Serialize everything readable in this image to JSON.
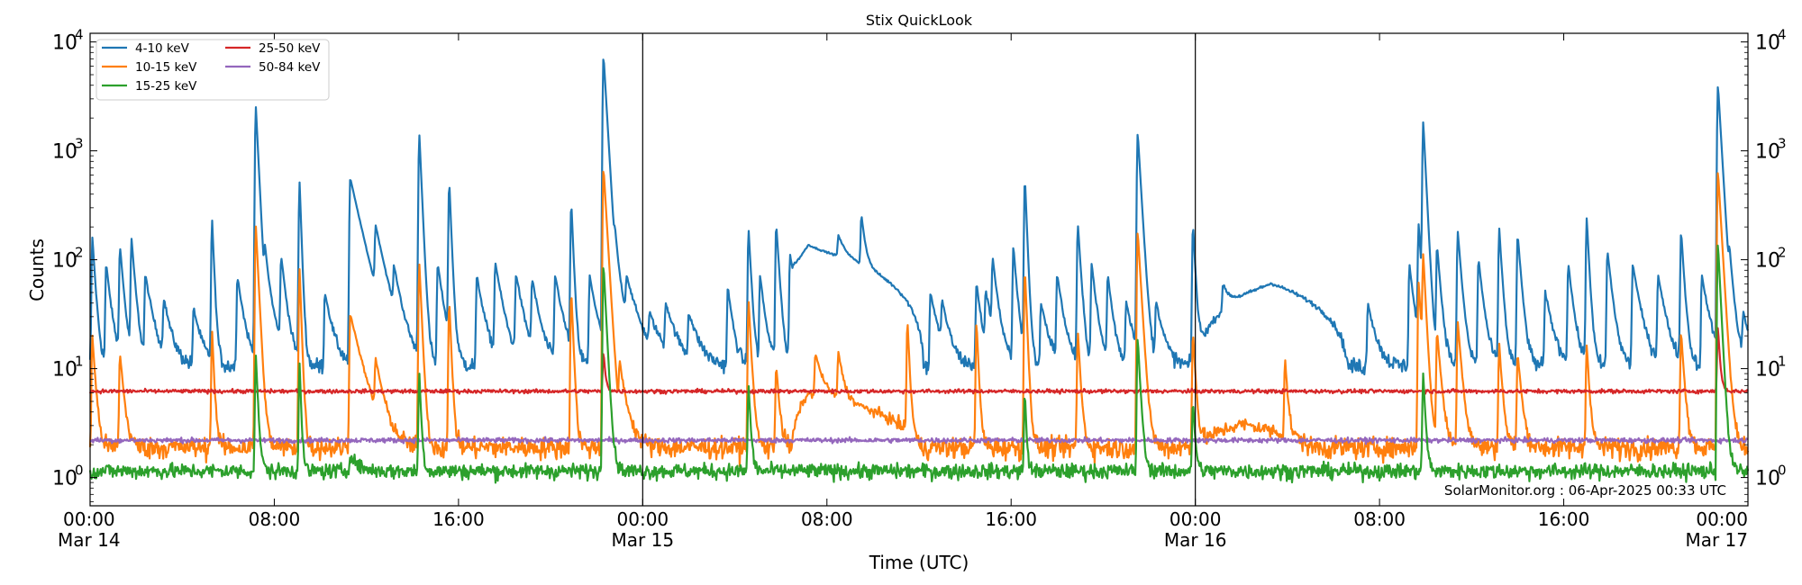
{
  "chart_data": {
    "type": "line",
    "title": "Stix QuickLook",
    "xlabel": "Time (UTC)",
    "ylabel": "Counts",
    "yscale": "log",
    "ylim": [
      0.55,
      12000
    ],
    "xlim_hours": [
      0,
      72
    ],
    "grid": false,
    "legend_position": "top-left",
    "day_dividers_hours": [
      24,
      48
    ],
    "x_ticks": [
      {
        "hour": 0,
        "label": "00:00",
        "sublabel": "Mar 14"
      },
      {
        "hour": 8,
        "label": "08:00",
        "sublabel": ""
      },
      {
        "hour": 16,
        "label": "16:00",
        "sublabel": ""
      },
      {
        "hour": 24,
        "label": "00:00",
        "sublabel": "Mar 15"
      },
      {
        "hour": 32,
        "label": "08:00",
        "sublabel": ""
      },
      {
        "hour": 40,
        "label": "16:00",
        "sublabel": ""
      },
      {
        "hour": 48,
        "label": "00:00",
        "sublabel": "Mar 16"
      },
      {
        "hour": 56,
        "label": "08:00",
        "sublabel": ""
      },
      {
        "hour": 64,
        "label": "16:00",
        "sublabel": ""
      },
      {
        "hour": 72,
        "label": "00:00",
        "sublabel": "Mar 17"
      }
    ],
    "y_ticks": [
      {
        "value": 1,
        "base": "10",
        "exp": "0"
      },
      {
        "value": 10,
        "base": "10",
        "exp": "1"
      },
      {
        "value": 100,
        "base": "10",
        "exp": "2"
      },
      {
        "value": 1000,
        "base": "10",
        "exp": "3"
      },
      {
        "value": 10000,
        "base": "10",
        "exp": "4"
      }
    ],
    "annotation": "SolarMonitor.org : 06-Apr-2025 00:33 UTC",
    "series": [
      {
        "name": "4-10 keV",
        "color": "#1f77b4",
        "baseline": 10.5,
        "noise": 0.18,
        "events": [
          {
            "type": "peak",
            "t": 0.1,
            "amp": 150,
            "w": 0.12
          },
          {
            "type": "peak",
            "t": 0.7,
            "amp": 80,
            "w": 0.2
          },
          {
            "type": "peak",
            "t": 1.3,
            "amp": 120,
            "w": 0.15
          },
          {
            "type": "peak",
            "t": 1.8,
            "amp": 140,
            "w": 0.15
          },
          {
            "type": "peak",
            "t": 2.4,
            "amp": 60,
            "w": 0.3
          },
          {
            "type": "peak",
            "t": 3.2,
            "amp": 30,
            "w": 0.3
          },
          {
            "type": "peak",
            "t": 4.5,
            "amp": 25,
            "w": 0.3
          },
          {
            "type": "peak",
            "t": 5.3,
            "amp": 220,
            "w": 0.08
          },
          {
            "type": "peak",
            "t": 6.4,
            "amp": 60,
            "w": 0.25
          },
          {
            "type": "peak",
            "t": 7.2,
            "amp": 2500,
            "w": 0.1
          },
          {
            "type": "peak",
            "t": 7.6,
            "amp": 80,
            "w": 0.3
          },
          {
            "type": "peak",
            "t": 8.3,
            "amp": 90,
            "w": 0.2
          },
          {
            "type": "peak",
            "t": 9.1,
            "amp": 500,
            "w": 0.07
          },
          {
            "type": "peak",
            "t": 10.2,
            "amp": 40,
            "w": 0.3
          },
          {
            "type": "peak",
            "t": 11.3,
            "amp": 550,
            "w": 0.45
          },
          {
            "type": "peak",
            "t": 12.4,
            "amp": 150,
            "w": 0.4
          },
          {
            "type": "peak",
            "t": 13.2,
            "amp": 50,
            "w": 0.3
          },
          {
            "type": "peak",
            "t": 14.3,
            "amp": 1400,
            "w": 0.09
          },
          {
            "type": "peak",
            "t": 15.1,
            "amp": 80,
            "w": 0.25
          },
          {
            "type": "peak",
            "t": 15.6,
            "amp": 500,
            "w": 0.08
          },
          {
            "type": "peak",
            "t": 16.8,
            "amp": 60,
            "w": 0.3
          },
          {
            "type": "peak",
            "t": 17.6,
            "amp": 80,
            "w": 0.3
          },
          {
            "type": "peak",
            "t": 18.5,
            "amp": 60,
            "w": 0.3
          },
          {
            "type": "peak",
            "t": 19.2,
            "amp": 50,
            "w": 0.3
          },
          {
            "type": "peak",
            "t": 20.2,
            "amp": 60,
            "w": 0.3
          },
          {
            "type": "peak",
            "t": 20.9,
            "amp": 320,
            "w": 0.08
          },
          {
            "type": "peak",
            "t": 21.7,
            "amp": 60,
            "w": 0.3
          },
          {
            "type": "peak",
            "t": 22.3,
            "amp": 7500,
            "w": 0.12
          },
          {
            "type": "peak",
            "t": 22.8,
            "amp": 70,
            "w": 0.4
          },
          {
            "type": "peak",
            "t": 23.3,
            "amp": 40,
            "w": 0.5
          },
          {
            "type": "peak",
            "t": 24.3,
            "amp": 15,
            "w": 0.5
          },
          {
            "type": "peak",
            "t": 25.0,
            "amp": 25,
            "w": 0.4
          },
          {
            "type": "peak",
            "t": 26.0,
            "amp": 20,
            "w": 0.4
          },
          {
            "type": "peak",
            "t": 27.7,
            "amp": 45,
            "w": 0.2
          },
          {
            "type": "peak",
            "t": 28.6,
            "amp": 180,
            "w": 0.1
          },
          {
            "type": "peak",
            "t": 29.1,
            "amp": 60,
            "w": 0.2
          },
          {
            "type": "peak",
            "t": 29.8,
            "amp": 200,
            "w": 0.12
          },
          {
            "type": "peak",
            "t": 30.4,
            "amp": 100,
            "w": 0.3
          },
          {
            "type": "bump",
            "t0": 30.5,
            "peak": 31.2,
            "t1": 36.2,
            "amp": 120
          },
          {
            "type": "peak",
            "t": 32.5,
            "amp": 60,
            "w": 0.3
          },
          {
            "type": "peak",
            "t": 33.5,
            "amp": 170,
            "w": 0.15
          },
          {
            "type": "peak",
            "t": 36.5,
            "amp": 40,
            "w": 0.3
          },
          {
            "type": "peak",
            "t": 37.0,
            "amp": 25,
            "w": 0.3
          },
          {
            "type": "peak",
            "t": 38.5,
            "amp": 50,
            "w": 0.2
          },
          {
            "type": "peak",
            "t": 38.9,
            "amp": 35,
            "w": 0.3
          },
          {
            "type": "peak",
            "t": 39.2,
            "amp": 80,
            "w": 0.2
          },
          {
            "type": "peak",
            "t": 40.1,
            "amp": 120,
            "w": 0.15
          },
          {
            "type": "peak",
            "t": 40.6,
            "amp": 550,
            "w": 0.08
          },
          {
            "type": "peak",
            "t": 41.3,
            "amp": 30,
            "w": 0.3
          },
          {
            "type": "peak",
            "t": 42.0,
            "amp": 60,
            "w": 0.25
          },
          {
            "type": "peak",
            "t": 42.9,
            "amp": 200,
            "w": 0.12
          },
          {
            "type": "peak",
            "t": 43.5,
            "amp": 80,
            "w": 0.2
          },
          {
            "type": "peak",
            "t": 44.2,
            "amp": 60,
            "w": 0.2
          },
          {
            "type": "peak",
            "t": 45.0,
            "amp": 30,
            "w": 0.3
          },
          {
            "type": "peak",
            "t": 45.5,
            "amp": 1450,
            "w": 0.12
          },
          {
            "type": "peak",
            "t": 46.3,
            "amp": 30,
            "w": 0.3
          },
          {
            "type": "peak",
            "t": 47.9,
            "amp": 200,
            "w": 0.1
          },
          {
            "type": "bump",
            "t0": 48.1,
            "peak": 51.3,
            "t1": 54.6,
            "amp": 50
          },
          {
            "type": "peak",
            "t": 49.2,
            "amp": 25,
            "w": 0.3
          },
          {
            "type": "peak",
            "t": 55.5,
            "amp": 30,
            "w": 0.3
          },
          {
            "type": "peak",
            "t": 57.3,
            "amp": 80,
            "w": 0.2
          },
          {
            "type": "peak",
            "t": 57.7,
            "amp": 190,
            "w": 0.12
          },
          {
            "type": "peak",
            "t": 57.9,
            "amp": 1800,
            "w": 0.1
          },
          {
            "type": "peak",
            "t": 58.5,
            "amp": 120,
            "w": 0.15
          },
          {
            "type": "peak",
            "t": 59.4,
            "amp": 170,
            "w": 0.15
          },
          {
            "type": "peak",
            "t": 60.3,
            "amp": 90,
            "w": 0.2
          },
          {
            "type": "peak",
            "t": 61.2,
            "amp": 180,
            "w": 0.12
          },
          {
            "type": "peak",
            "t": 62.0,
            "amp": 160,
            "w": 0.15
          },
          {
            "type": "peak",
            "t": 63.2,
            "amp": 40,
            "w": 0.3
          },
          {
            "type": "peak",
            "t": 64.2,
            "amp": 80,
            "w": 0.2
          },
          {
            "type": "peak",
            "t": 65.0,
            "amp": 230,
            "w": 0.1
          },
          {
            "type": "peak",
            "t": 65.9,
            "amp": 110,
            "w": 0.2
          },
          {
            "type": "peak",
            "t": 67.0,
            "amp": 80,
            "w": 0.3
          },
          {
            "type": "peak",
            "t": 68.1,
            "amp": 60,
            "w": 0.3
          },
          {
            "type": "peak",
            "t": 69.1,
            "amp": 170,
            "w": 0.12
          },
          {
            "type": "peak",
            "t": 70.0,
            "amp": 60,
            "w": 0.3
          },
          {
            "type": "peak",
            "t": 70.7,
            "amp": 4000,
            "w": 0.12
          },
          {
            "type": "peak",
            "t": 71.2,
            "amp": 60,
            "w": 0.2
          },
          {
            "type": "peak",
            "t": 71.8,
            "amp": 20,
            "w": 0.3
          }
        ]
      },
      {
        "name": "10-15 keV",
        "color": "#ff7f0e",
        "baseline": 1.9,
        "noise": 0.22,
        "events": [
          {
            "type": "peak",
            "t": 0.1,
            "amp": 18,
            "w": 0.12
          },
          {
            "type": "peak",
            "t": 1.3,
            "amp": 12,
            "w": 0.15
          },
          {
            "type": "peak",
            "t": 5.3,
            "amp": 20,
            "w": 0.08
          },
          {
            "type": "peak",
            "t": 7.2,
            "amp": 200,
            "w": 0.1
          },
          {
            "type": "peak",
            "t": 9.1,
            "amp": 80,
            "w": 0.07
          },
          {
            "type": "peak",
            "t": 11.3,
            "amp": 30,
            "w": 0.45
          },
          {
            "type": "peak",
            "t": 12.4,
            "amp": 8,
            "w": 0.3
          },
          {
            "type": "peak",
            "t": 14.3,
            "amp": 90,
            "w": 0.09
          },
          {
            "type": "peak",
            "t": 15.6,
            "amp": 40,
            "w": 0.08
          },
          {
            "type": "peak",
            "t": 20.9,
            "amp": 50,
            "w": 0.08
          },
          {
            "type": "peak",
            "t": 22.3,
            "amp": 700,
            "w": 0.12
          },
          {
            "type": "peak",
            "t": 23.0,
            "amp": 8,
            "w": 0.3
          },
          {
            "type": "peak",
            "t": 28.6,
            "amp": 40,
            "w": 0.1
          },
          {
            "type": "peak",
            "t": 29.8,
            "amp": 9,
            "w": 0.12
          },
          {
            "type": "bump",
            "t0": 30.5,
            "peak": 31.2,
            "t1": 36.0,
            "amp": 4
          },
          {
            "type": "peak",
            "t": 31.5,
            "amp": 8,
            "w": 0.3
          },
          {
            "type": "peak",
            "t": 32.5,
            "amp": 9,
            "w": 0.2
          },
          {
            "type": "peak",
            "t": 35.5,
            "amp": 25,
            "w": 0.08
          },
          {
            "type": "peak",
            "t": 38.5,
            "amp": 25,
            "w": 0.08
          },
          {
            "type": "peak",
            "t": 40.6,
            "amp": 80,
            "w": 0.08
          },
          {
            "type": "peak",
            "t": 42.9,
            "amp": 20,
            "w": 0.1
          },
          {
            "type": "peak",
            "t": 45.5,
            "amp": 180,
            "w": 0.12
          },
          {
            "type": "peak",
            "t": 47.9,
            "amp": 20,
            "w": 0.1
          },
          {
            "type": "bump",
            "t0": 48.1,
            "peak": 50.0,
            "t1": 53.0,
            "amp": 1.2
          },
          {
            "type": "peak",
            "t": 51.9,
            "amp": 10,
            "w": 0.1
          },
          {
            "type": "peak",
            "t": 57.7,
            "amp": 60,
            "w": 0.12
          },
          {
            "type": "peak",
            "t": 57.9,
            "amp": 100,
            "w": 0.1
          },
          {
            "type": "peak",
            "t": 58.5,
            "amp": 20,
            "w": 0.15
          },
          {
            "type": "peak",
            "t": 59.4,
            "amp": 25,
            "w": 0.15
          },
          {
            "type": "peak",
            "t": 61.2,
            "amp": 15,
            "w": 0.12
          },
          {
            "type": "peak",
            "t": 62.0,
            "amp": 12,
            "w": 0.15
          },
          {
            "type": "peak",
            "t": 65.0,
            "amp": 15,
            "w": 0.1
          },
          {
            "type": "peak",
            "t": 69.1,
            "amp": 20,
            "w": 0.12
          },
          {
            "type": "peak",
            "t": 70.7,
            "amp": 650,
            "w": 0.12
          }
        ]
      },
      {
        "name": "15-25 keV",
        "color": "#2ca02c",
        "baseline": 1.15,
        "noise": 0.16,
        "events": [
          {
            "type": "peak",
            "t": 7.2,
            "amp": 12,
            "w": 0.08
          },
          {
            "type": "peak",
            "t": 9.1,
            "amp": 10,
            "w": 0.06
          },
          {
            "type": "peak",
            "t": 11.3,
            "amp": 0.5,
            "w": 0.3
          },
          {
            "type": "peak",
            "t": 14.3,
            "amp": 8,
            "w": 0.07
          },
          {
            "type": "peak",
            "t": 22.3,
            "amp": 90,
            "w": 0.1
          },
          {
            "type": "peak",
            "t": 28.6,
            "amp": 6,
            "w": 0.08
          },
          {
            "type": "peak",
            "t": 40.6,
            "amp": 5,
            "w": 0.06
          },
          {
            "type": "peak",
            "t": 45.5,
            "amp": 18,
            "w": 0.1
          },
          {
            "type": "peak",
            "t": 47.9,
            "amp": 4,
            "w": 0.08
          },
          {
            "type": "peak",
            "t": 57.9,
            "amp": 8,
            "w": 0.08
          },
          {
            "type": "peak",
            "t": 70.7,
            "amp": 140,
            "w": 0.1
          }
        ]
      },
      {
        "name": "25-50 keV",
        "color": "#d62728",
        "baseline": 6.2,
        "noise": 0.04,
        "events": [
          {
            "type": "peak",
            "t": 22.3,
            "amp": 8,
            "w": 0.08
          },
          {
            "type": "peak",
            "t": 70.7,
            "amp": 18,
            "w": 0.08
          }
        ]
      },
      {
        "name": "50-84 keV",
        "color": "#9467bd",
        "baseline": 2.2,
        "noise": 0.05,
        "events": []
      }
    ]
  }
}
